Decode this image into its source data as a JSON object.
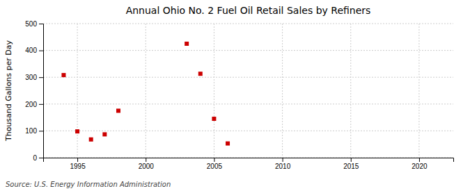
{
  "chart_data": {
    "type": "scatter",
    "title": "Annual Ohio No. 2 Fuel Oil Retail Sales by Refiners",
    "ylabel": "Thousand Gallons per Day",
    "annotations": [
      "Source: U.S. Energy Information Administration"
    ],
    "x": [
      1994,
      1995,
      1996,
      1997,
      1998,
      2003,
      2004,
      2005,
      2006
    ],
    "values": [
      308,
      98,
      68,
      87,
      175,
      425,
      313,
      145,
      53
    ],
    "color": "#cc0000",
    "marker": "square",
    "xlim": [
      1992.5,
      2022.5
    ],
    "ylim": [
      0,
      500
    ],
    "xticks": [
      1995,
      2000,
      2005,
      2010,
      2015,
      2020
    ],
    "yticks": [
      0,
      100,
      200,
      300,
      400,
      500
    ],
    "grid": true
  }
}
